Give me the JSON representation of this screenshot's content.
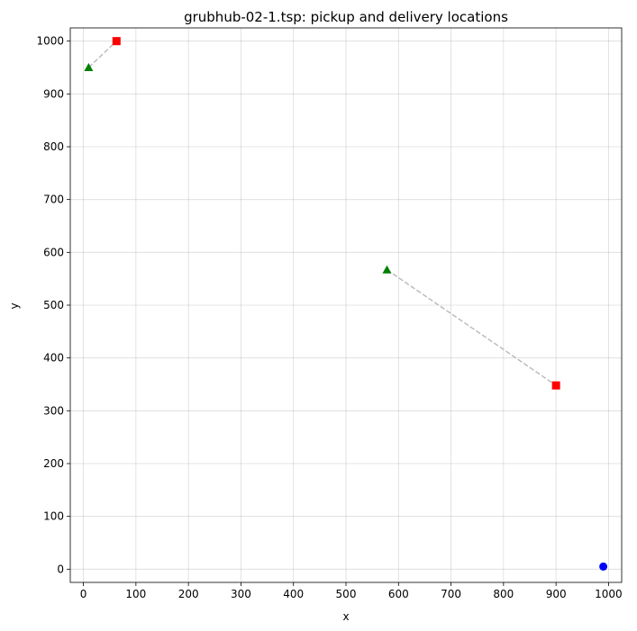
{
  "chart_data": {
    "type": "scatter",
    "title": "grubhub-02-1.tsp: pickup and delivery locations",
    "xlabel": "x",
    "ylabel": "y",
    "xlim": [
      -25,
      1025
    ],
    "ylim": [
      -25,
      1025
    ],
    "xticks": [
      0,
      100,
      200,
      300,
      400,
      500,
      600,
      700,
      800,
      900,
      1000
    ],
    "yticks": [
      0,
      100,
      200,
      300,
      400,
      500,
      600,
      700,
      800,
      900,
      1000
    ],
    "grid": true,
    "depot": {
      "x": 990,
      "y": 5,
      "marker": "circle",
      "color": "#0000ff"
    },
    "pairs": [
      {
        "pickup": {
          "x": 10,
          "y": 950
        },
        "delivery": {
          "x": 63,
          "y": 1000
        }
      },
      {
        "pickup": {
          "x": 578,
          "y": 567
        },
        "delivery": {
          "x": 900,
          "y": 348
        }
      }
    ],
    "pickup_style": {
      "marker": "triangle",
      "color": "#008000"
    },
    "delivery_style": {
      "marker": "square",
      "color": "#ff0000"
    },
    "link_style": {
      "color": "#b9bcc2",
      "dash": "dashed"
    }
  }
}
